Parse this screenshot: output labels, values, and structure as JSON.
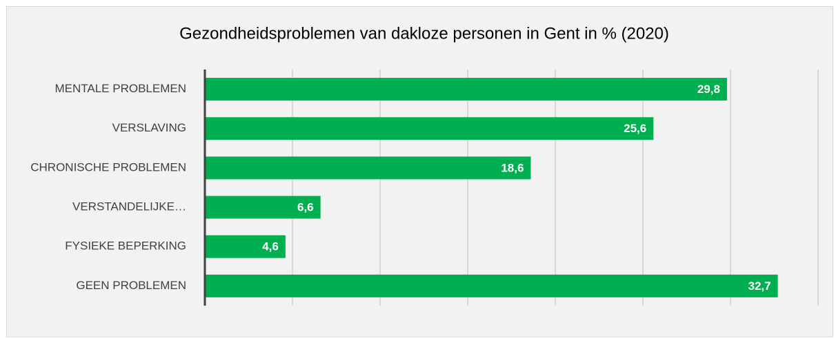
{
  "chart_data": {
    "type": "bar",
    "orientation": "horizontal",
    "title": "Gezondheidsproblemen van dakloze personen in Gent in % (2020)",
    "categories": [
      "MENTALE PROBLEMEN",
      "VERSLAVING",
      "CHRONISCHE PROBLEMEN",
      "VERSTANDELIJKE…",
      "FYSIEKE BEPERKING",
      "GEEN PROBLEMEN"
    ],
    "values": [
      29.8,
      25.6,
      18.6,
      6.6,
      4.6,
      32.7
    ],
    "value_labels": [
      "29,8",
      "25,6",
      "18,6",
      "6,6",
      "4,6",
      "32,7"
    ],
    "color": "#00b050",
    "xlim": [
      0,
      35
    ],
    "xticks": [
      0,
      5,
      10,
      15,
      20,
      25,
      30,
      35
    ],
    "grid": true
  }
}
